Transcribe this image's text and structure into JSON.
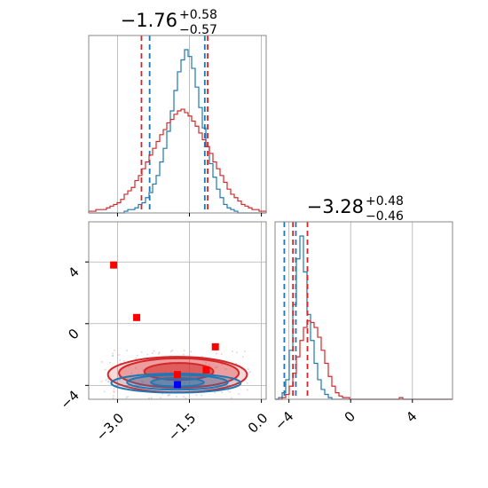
{
  "chart_data": [
    {
      "type": "histogram",
      "panel": "top-left",
      "title": {
        "value": "−1.76",
        "sup": "+0.58",
        "sub": "−0.57"
      },
      "xlim": [
        -3.6,
        0.1
      ],
      "grid": true,
      "series": [
        {
          "color": "#1f77b4",
          "bins": {
            "start": -3.6,
            "width": 0.074,
            "heights": [
              0,
              0,
              0,
              0,
              0,
              0,
              0,
              0,
              0,
              0,
              1,
              2,
              2,
              3,
              5,
              6,
              9,
              12,
              17,
              22,
              30,
              38,
              48,
              60,
              72,
              83,
              90,
              96,
              92,
              85,
              74,
              62,
              50,
              39,
              29,
              21,
              14,
              9,
              5,
              3,
              2,
              1,
              0,
              0,
              0,
              0,
              0,
              0,
              0,
              0
            ]
          },
          "quantile_lines": [
            -2.33,
            -1.18
          ]
        },
        {
          "color": "#d62728",
          "bins": {
            "start": -3.6,
            "width": 0.074,
            "heights": [
              1,
              1,
              2,
              2,
              2,
              3,
              4,
              5,
              6,
              8,
              11,
              13,
              15,
              19,
              22,
              26,
              30,
              34,
              38,
              42,
              46,
              49,
              53,
              55,
              58,
              60,
              61,
              59,
              57,
              54,
              51,
              47,
              43,
              39,
              35,
              30,
              26,
              22,
              18,
              14,
              11,
              9,
              7,
              5,
              4,
              3,
              2,
              2,
              1,
              1
            ]
          },
          "quantile_lines": [
            -2.5,
            -1.12
          ]
        }
      ]
    },
    {
      "type": "histogram",
      "panel": "bottom-right",
      "title": {
        "value": "−3.28",
        "sup": "+0.48",
        "sub": "−0.46"
      },
      "xlim": [
        -4.9,
        6.6
      ],
      "xticks": [
        "−4",
        "0",
        "4"
      ],
      "grid": true,
      "series": [
        {
          "color": "#1f77b4",
          "bins": {
            "start": -4.9,
            "width": 0.23,
            "heights": [
              0,
              1,
              4,
              12,
              30,
              58,
              86,
              100,
              78,
              52,
              36,
              22,
              12,
              6,
              3,
              1,
              0,
              0,
              0,
              0,
              0,
              0,
              0,
              0,
              0,
              0,
              0,
              0,
              0,
              0,
              0,
              0,
              0,
              0,
              0,
              0,
              0,
              0,
              0,
              0,
              0,
              0,
              0,
              0,
              0,
              0,
              0,
              0,
              0,
              0
            ]
          },
          "quantile_lines": [
            -4.3,
            -3.55
          ]
        },
        {
          "color": "#d62728",
          "bins": {
            "start": -4.9,
            "width": 0.23,
            "heights": [
              0,
              0,
              1,
              3,
              8,
              16,
              26,
              36,
              44,
              48,
              47,
              44,
              38,
              30,
              22,
              14,
              8,
              4,
              2,
              1,
              1,
              0,
              0,
              0,
              0,
              0,
              0,
              0,
              0,
              0,
              0,
              0,
              0,
              0,
              0,
              1,
              0,
              0,
              0,
              0,
              0,
              0,
              0,
              0,
              0,
              0,
              0,
              0,
              0,
              0
            ]
          },
          "quantile_lines": [
            -3.74,
            -2.8
          ]
        }
      ]
    },
    {
      "type": "contour",
      "panel": "bottom-left",
      "xlim": [
        -3.6,
        0.1
      ],
      "ylim": [
        -4.9,
        6.6
      ],
      "xticks": [
        "−3.0",
        "−1.5",
        "0.0"
      ],
      "yticks": [
        "−4",
        "0",
        "4"
      ],
      "grid": true,
      "series": [
        {
          "color": "#d62728",
          "levels": [
            {
              "cx": -1.72,
              "cy": -3.1,
              "rx": 0.72,
              "ry": 0.55,
              "opacity": 0.9
            },
            {
              "cx": -1.72,
              "cy": -3.2,
              "rx": 1.25,
              "ry": 0.95,
              "opacity": 0.55
            },
            {
              "cx": -1.75,
              "cy": -3.3,
              "rx": 1.45,
              "ry": 1.15,
              "opacity": 0.3
            }
          ]
        },
        {
          "color": "#1f77b4",
          "levels": [
            {
              "cx": -1.75,
              "cy": -3.8,
              "rx": 0.55,
              "ry": 0.28,
              "opacity": 0.7
            },
            {
              "cx": -1.75,
              "cy": -3.8,
              "rx": 1.05,
              "ry": 0.48,
              "opacity": 0.45
            },
            {
              "cx": -1.78,
              "cy": -3.85,
              "rx": 1.35,
              "ry": 0.62,
              "opacity": 0.25
            }
          ]
        }
      ],
      "markers": [
        {
          "x": -3.08,
          "y": 3.8,
          "color": "#ff0000"
        },
        {
          "x": -2.6,
          "y": 0.4,
          "color": "#ff0000"
        },
        {
          "x": -0.96,
          "y": -1.5,
          "color": "#ff0000"
        },
        {
          "x": -1.15,
          "y": -3.0,
          "color": "#ff0000"
        },
        {
          "x": -1.75,
          "y": -3.3,
          "color": "#ff0000"
        },
        {
          "x": -1.75,
          "y": -3.95,
          "color": "#0000ff"
        }
      ]
    }
  ]
}
